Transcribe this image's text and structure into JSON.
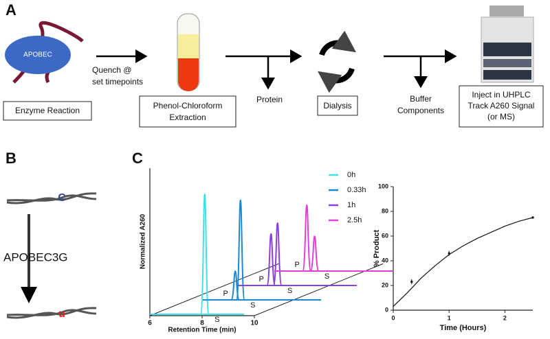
{
  "panel_a": {
    "label": "A",
    "enzyme_label": "APOBEC",
    "boxes": [
      [
        "Enzyme Reaction"
      ],
      [
        "Phenol-Chloroform",
        "Extraction"
      ],
      [
        "Dialysis"
      ],
      [
        "Inject in UHPLC",
        "Track A260 Signal",
        "(or MS)"
      ]
    ],
    "arrow_labels": [
      [
        "Quench @",
        "set timepoints"
      ],
      [
        "Protein"
      ],
      [
        "Buffer",
        "Components"
      ]
    ]
  },
  "panel_b": {
    "label": "B",
    "enzyme": "APOBEC3G",
    "before_base": "C",
    "after_base": "u"
  },
  "panel_c": {
    "label": "C"
  },
  "chart_data": [
    {
      "type": "waterfall",
      "x_label": "Retention Time (min)",
      "y_label": "Normalized A260",
      "xlim": [
        6,
        10
      ],
      "xticks": [
        6,
        8,
        10
      ],
      "ylim": [
        0,
        1
      ],
      "series": [
        {
          "name": "0h",
          "color": "#3fe0e8",
          "x": [
            8.1
          ],
          "values": [
            1.0
          ],
          "peak_labels": [
            "S"
          ]
        },
        {
          "name": "0.33h",
          "color": "#1a88d4",
          "x": [
            7.9,
            8.1
          ],
          "values": [
            0.24,
            0.83
          ],
          "peak_labels": [
            "P",
            "S"
          ]
        },
        {
          "name": "1h",
          "color": "#8a40e0",
          "x": [
            7.9,
            8.15
          ],
          "values": [
            0.43,
            0.52
          ],
          "peak_labels": [
            "P",
            "S"
          ]
        },
        {
          "name": "2.5h",
          "color": "#e040d8",
          "x": [
            7.9,
            8.2
          ],
          "values": [
            0.55,
            0.29
          ],
          "peak_labels": [
            "P",
            "S"
          ]
        }
      ]
    },
    {
      "type": "scatter_fit",
      "x_label": "Time (Hours)",
      "y_label": "% Product",
      "xlim": [
        0,
        2.5
      ],
      "xticks": [
        0,
        1,
        2
      ],
      "ylim": [
        0,
        100
      ],
      "yticks": [
        0,
        20,
        40,
        60,
        80,
        100
      ],
      "points": {
        "x": [
          0.33,
          1,
          2.5
        ],
        "values": [
          23,
          46,
          75
        ],
        "errors": [
          2,
          2,
          1
        ]
      },
      "fit": {
        "x": [
          0,
          0.25,
          0.5,
          0.75,
          1,
          1.25,
          1.5,
          1.75,
          2,
          2.25,
          2.5
        ],
        "values": [
          3,
          14,
          26,
          36,
          45,
          52,
          58,
          63,
          68,
          72,
          75
        ]
      }
    }
  ]
}
